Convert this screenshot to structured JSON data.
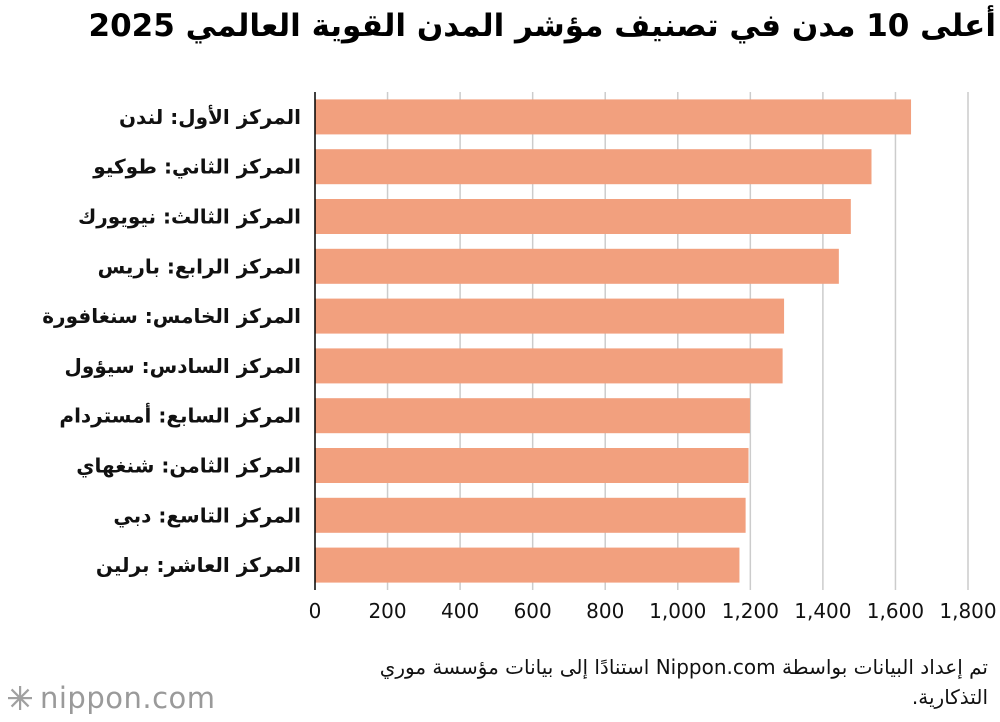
{
  "chart_data": {
    "type": "bar",
    "orientation": "horizontal",
    "title": "أعلى 10 مدن في تصنيف مؤشر المدن القوية العالمي 2025",
    "categories": [
      "المركز الأول: لندن",
      "المركز الثاني: طوكيو",
      "المركز الثالث: نيويورك",
      "المركز الرابع: باريس",
      "المركز الخامس: سنغافورة",
      "المركز السادس: سيؤول",
      "المركز السابع: أمستردام",
      "المركز الثامن: شنغهاي",
      "المركز التاسع: دبي",
      "المركز العاشر: برلين"
    ],
    "values": [
      1643,
      1534,
      1477,
      1444,
      1293,
      1289,
      1199,
      1195,
      1187,
      1170
    ],
    "xlim": [
      0,
      1800
    ],
    "ticks": [
      0,
      200,
      400,
      600,
      800,
      1000,
      1200,
      1400,
      1600,
      1800
    ],
    "tick_labels": [
      "0",
      "200",
      "400",
      "600",
      "800",
      "1,000",
      "1,200",
      "1,400",
      "1,600",
      "1,800"
    ],
    "grid": true,
    "bar_color": "#f2a07e",
    "grid_color": "#cccccc",
    "axis_color": "#000000",
    "legend": "none"
  },
  "note": "تم إعداد البيانات بواسطة Nippon.com استنادًا إلى بيانات مؤسسة موري التذكارية.",
  "brand": {
    "name": "nippon",
    "suffix": ".com",
    "icon": "nippon-logo-icon"
  }
}
